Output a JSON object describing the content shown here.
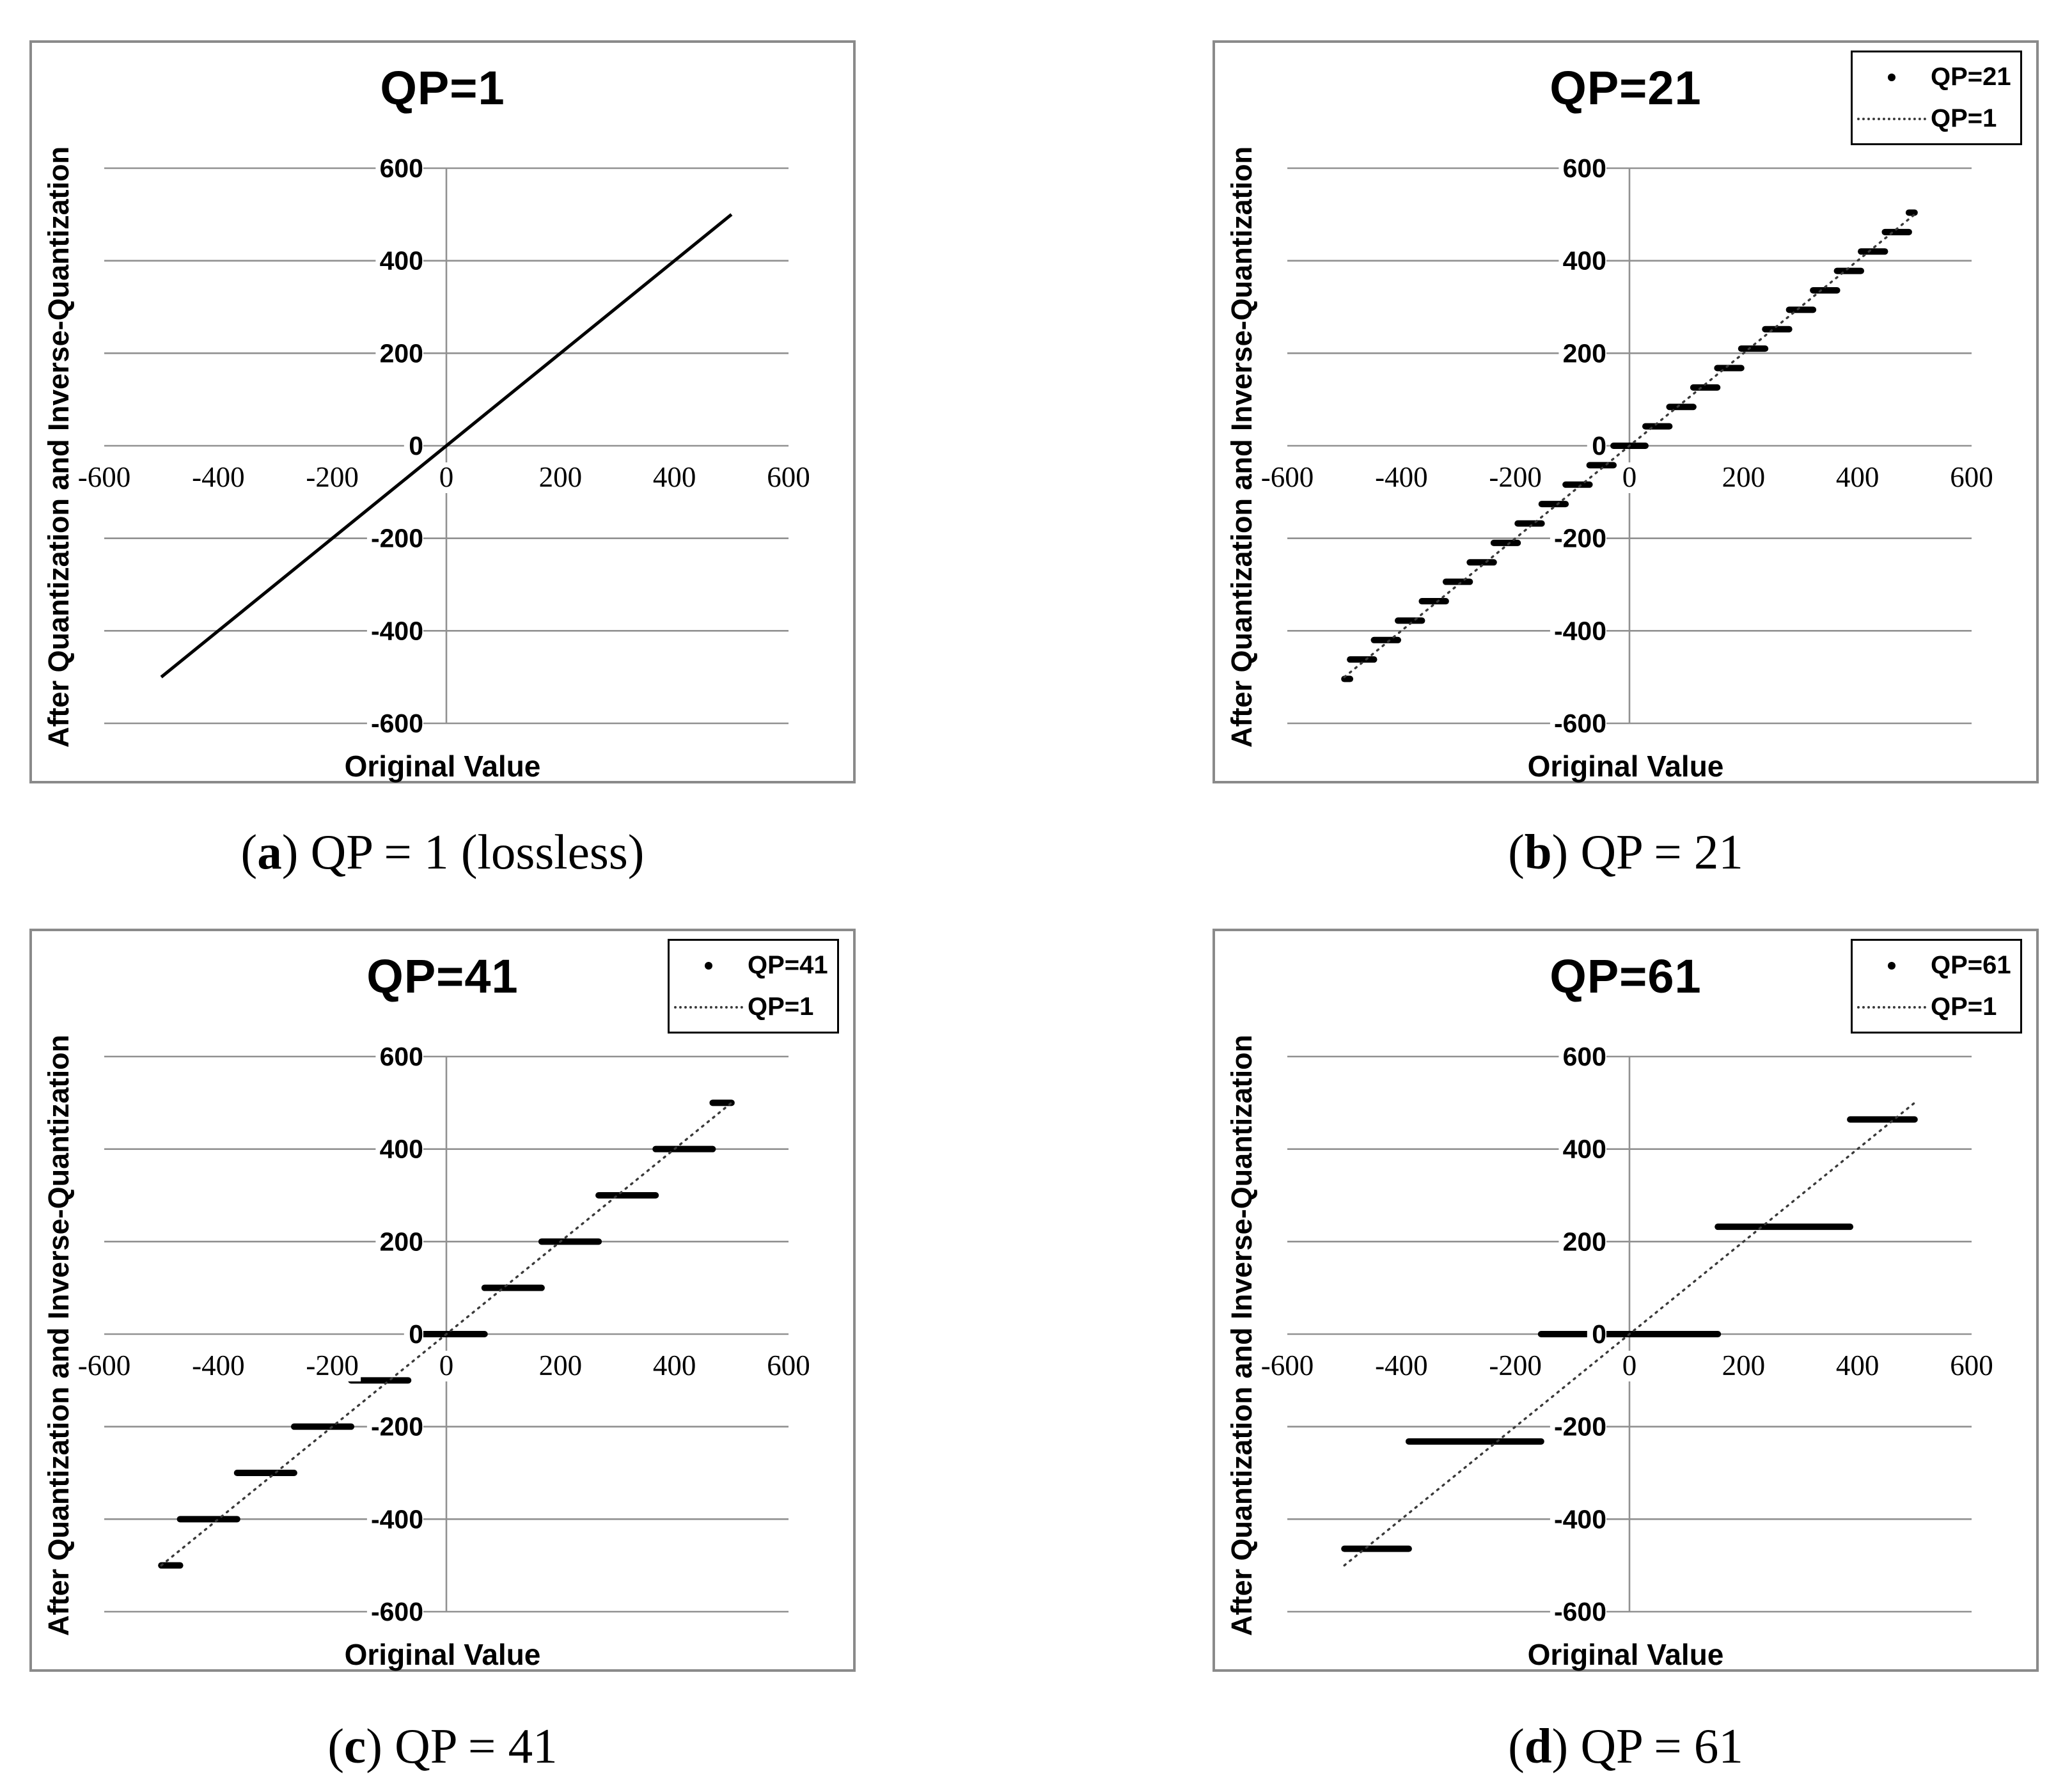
{
  "figure": {
    "background": "#ffffff",
    "grid_color": "#919191",
    "data_color": "#000000",
    "panel_border_color": "#8a8a8a"
  },
  "captions": [
    {
      "open": "(",
      "label": "a",
      "rest": ") QP = 1 (lossless)"
    },
    {
      "open": "(",
      "label": "b",
      "rest": ") QP = 21"
    },
    {
      "open": "(",
      "label": "c",
      "rest": ") QP = 41"
    },
    {
      "open": "(",
      "label": "d",
      "rest": ") QP = 61"
    }
  ],
  "chart_data": [
    {
      "type": "line",
      "panel": "a",
      "title": "QP=1",
      "xlabel": "Original Value",
      "ylabel": "After Quantization and Inverse-Quantization",
      "xlim": [
        -600,
        600
      ],
      "ylim": [
        -600,
        600
      ],
      "x_ticks": [
        -600,
        -400,
        -200,
        0,
        200,
        400,
        600
      ],
      "y_ticks": [
        600,
        400,
        200,
        0,
        -200,
        -400,
        -600
      ],
      "grid": "horizontal",
      "legend": null,
      "caption": "(a) QP = 1 (lossless)",
      "series": [
        {
          "name": "QP=1",
          "style": "solid-line",
          "points": [
            [
              -500,
              -500
            ],
            [
              500,
              500
            ]
          ]
        }
      ]
    },
    {
      "type": "scatter-steps",
      "panel": "b",
      "title": "QP=21",
      "xlabel": "Original Value",
      "ylabel": "After Quantization and Inverse-Quantization",
      "xlim": [
        -600,
        600
      ],
      "ylim": [
        -600,
        600
      ],
      "x_ticks": [
        -600,
        -400,
        -200,
        0,
        200,
        400,
        600
      ],
      "y_ticks": [
        600,
        400,
        200,
        0,
        -200,
        -400,
        -600
      ],
      "grid": "horizontal",
      "legend": {
        "position": "top-right",
        "entries": [
          {
            "marker": "dot",
            "label": "QP=21"
          },
          {
            "marker": "dotted-line",
            "label": "QP=1"
          }
        ]
      },
      "caption": "(b) QP = 21",
      "series": [
        {
          "name": "QP=21",
          "style": "step-segments",
          "step_size": 42,
          "segments": [
            [
              -500,
              -490,
              -504
            ],
            [
              -490,
              -448,
              -462
            ],
            [
              -448,
              -406,
              -420
            ],
            [
              -406,
              -364,
              -378
            ],
            [
              -364,
              -322,
              -336
            ],
            [
              -322,
              -280,
              -294
            ],
            [
              -280,
              -238,
              -252
            ],
            [
              -238,
              -196,
              -210
            ],
            [
              -196,
              -154,
              -168
            ],
            [
              -154,
              -112,
              -126
            ],
            [
              -112,
              -70,
              -84
            ],
            [
              -70,
              -28,
              -42
            ],
            [
              -28,
              28,
              0
            ],
            [
              28,
              70,
              42
            ],
            [
              70,
              112,
              84
            ],
            [
              112,
              154,
              126
            ],
            [
              154,
              196,
              168
            ],
            [
              196,
              238,
              210
            ],
            [
              238,
              280,
              252
            ],
            [
              280,
              322,
              294
            ],
            [
              322,
              364,
              336
            ],
            [
              364,
              406,
              378
            ],
            [
              406,
              448,
              420
            ],
            [
              448,
              490,
              462
            ],
            [
              490,
              500,
              504
            ]
          ]
        },
        {
          "name": "QP=1",
          "style": "dotted-line",
          "points": [
            [
              -500,
              -500
            ],
            [
              500,
              500
            ]
          ]
        }
      ]
    },
    {
      "type": "scatter-steps",
      "panel": "c",
      "title": "QP=41",
      "xlabel": "Original Value",
      "ylabel": "After Quantization and Inverse-Quantization",
      "xlim": [
        -600,
        600
      ],
      "ylim": [
        -600,
        600
      ],
      "x_ticks": [
        -600,
        -400,
        -200,
        0,
        200,
        400,
        600
      ],
      "y_ticks": [
        600,
        400,
        200,
        0,
        -200,
        -400,
        -600
      ],
      "grid": "horizontal",
      "legend": {
        "position": "top-right",
        "entries": [
          {
            "marker": "dot",
            "label": "QP=41"
          },
          {
            "marker": "dotted-line",
            "label": "QP=1"
          }
        ]
      },
      "caption": "(c) QP = 41",
      "series": [
        {
          "name": "QP=41",
          "style": "step-segments",
          "step_size": 100,
          "segments": [
            [
              -500,
              -467,
              -500
            ],
            [
              -467,
              -367,
              -400
            ],
            [
              -367,
              -267,
              -300
            ],
            [
              -267,
              -167,
              -200
            ],
            [
              -167,
              -67,
              -100
            ],
            [
              -67,
              67,
              0
            ],
            [
              67,
              167,
              100
            ],
            [
              167,
              267,
              200
            ],
            [
              267,
              367,
              300
            ],
            [
              367,
              467,
              400
            ],
            [
              467,
              500,
              500
            ]
          ]
        },
        {
          "name": "QP=1",
          "style": "dotted-line",
          "points": [
            [
              -500,
              -500
            ],
            [
              500,
              500
            ]
          ]
        }
      ]
    },
    {
      "type": "scatter-steps",
      "panel": "d",
      "title": "QP=61",
      "xlabel": "Original Value",
      "ylabel": "After Quantization and Inverse-Quantization",
      "xlim": [
        -600,
        600
      ],
      "ylim": [
        -600,
        600
      ],
      "x_ticks": [
        -600,
        -400,
        -200,
        0,
        200,
        400,
        600
      ],
      "y_ticks": [
        600,
        400,
        200,
        0,
        -200,
        -400,
        -600
      ],
      "grid": "horizontal",
      "legend": {
        "position": "top-right",
        "entries": [
          {
            "marker": "dot",
            "label": "QP=61"
          },
          {
            "marker": "dotted-line",
            "label": "QP=1"
          }
        ]
      },
      "caption": "(d) QP = 61",
      "series": [
        {
          "name": "QP=61",
          "style": "step-segments",
          "step_size": 232,
          "segments": [
            [
              -500,
              -387,
              -464
            ],
            [
              -387,
              -155,
              -232
            ],
            [
              -155,
              155,
              0
            ],
            [
              155,
              387,
              232
            ],
            [
              387,
              500,
              464
            ]
          ]
        },
        {
          "name": "QP=1",
          "style": "dotted-line",
          "points": [
            [
              -500,
              -500
            ],
            [
              500,
              500
            ]
          ]
        }
      ]
    }
  ]
}
